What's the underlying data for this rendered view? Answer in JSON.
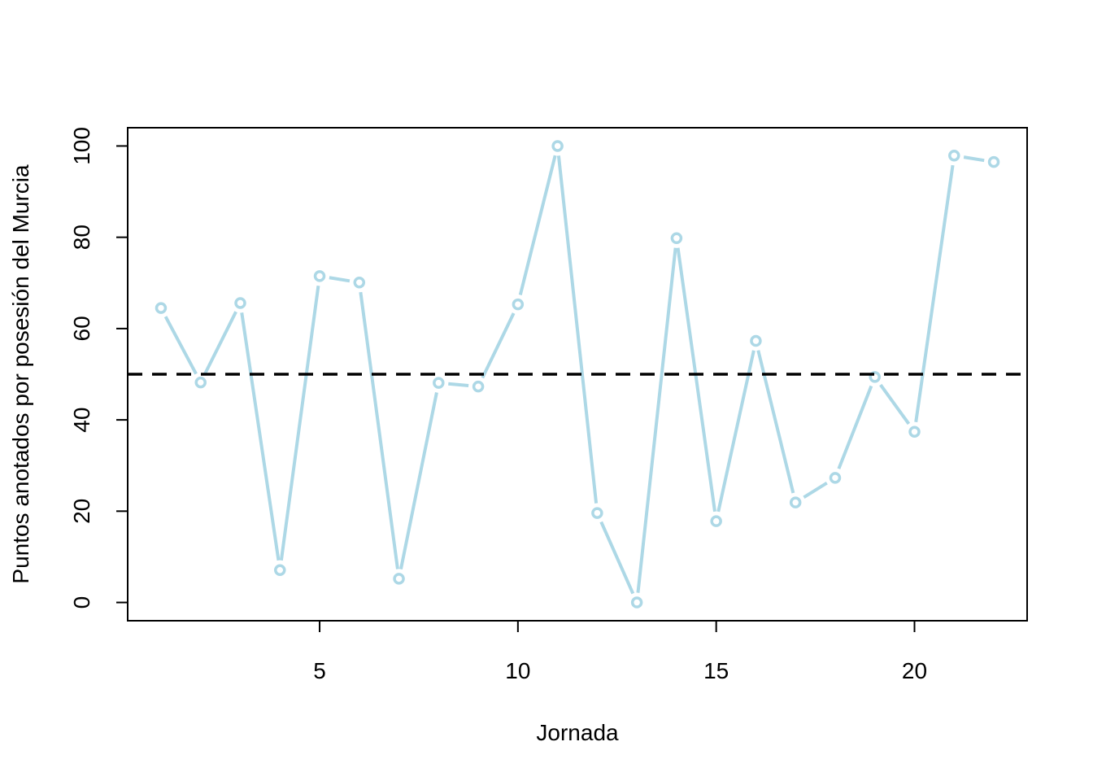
{
  "chart_data": {
    "type": "line",
    "title": "",
    "xlabel": "Jornada",
    "ylabel": "Puntos anotados por posesión del Murcia",
    "xlim": [
      0.16,
      22.84
    ],
    "ylim": [
      -4,
      104
    ],
    "x_ticks": [
      5,
      10,
      15,
      20
    ],
    "y_ticks": [
      0,
      20,
      40,
      60,
      80,
      100
    ],
    "grid": false,
    "legend": "none",
    "colors": {
      "series": "#add8e6",
      "reference": "#000000",
      "frame": "#000000"
    },
    "reference_line": {
      "y": 50,
      "style": "dashed"
    },
    "series": [
      {
        "x": [
          1,
          2,
          3,
          4,
          5,
          6,
          7,
          8,
          9,
          10,
          11,
          12,
          13,
          14,
          15,
          16,
          17,
          18,
          19,
          20,
          21,
          22
        ],
        "values": [
          64.5,
          48.2,
          65.6,
          7.1,
          71.5,
          70.1,
          5.2,
          48.1,
          47.3,
          65.3,
          100,
          19.6,
          0,
          79.8,
          17.8,
          57.3,
          21.9,
          27.3,
          49.4,
          37.4,
          97.9,
          96.5
        ]
      }
    ]
  }
}
